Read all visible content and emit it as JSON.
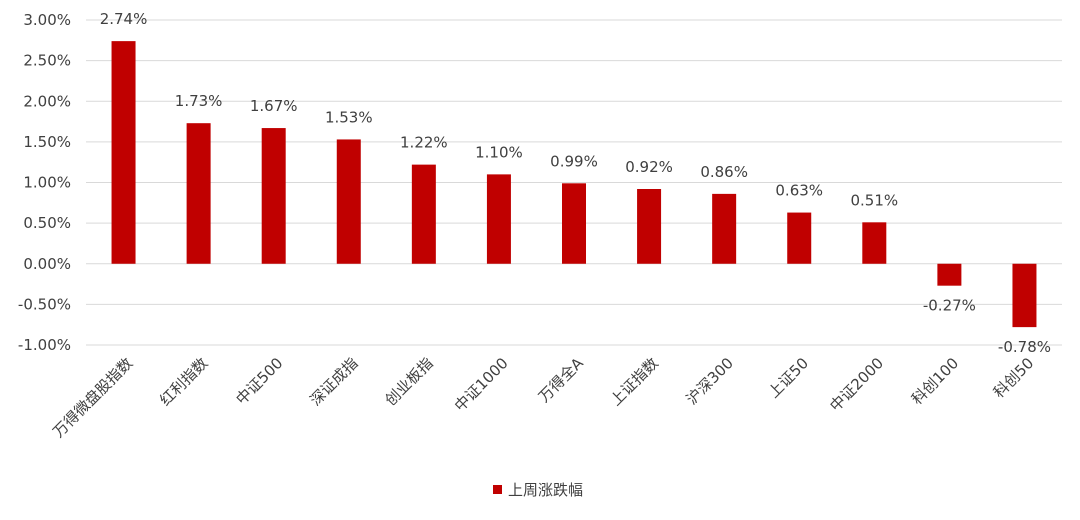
{
  "chart_data": {
    "type": "bar",
    "categories": [
      "万得微盘股指数",
      "红利指数",
      "中证500",
      "深证成指",
      "创业板指",
      "中证1000",
      "万得全A",
      "上证指数",
      "沪深300",
      "上证50",
      "中证2000",
      "科创100",
      "科创50"
    ],
    "series": [
      {
        "name": "上周涨跌幅",
        "values": [
          2.74,
          1.73,
          1.67,
          1.53,
          1.22,
          1.1,
          0.99,
          0.92,
          0.86,
          0.63,
          0.51,
          -0.27,
          -0.78
        ],
        "labels": [
          "2.74%",
          "1.73%",
          "1.67%",
          "1.53%",
          "1.22%",
          "1.10%",
          "0.99%",
          "0.92%",
          "0.86%",
          "0.63%",
          "0.51%",
          "-0.27%",
          "-0.78%"
        ]
      }
    ],
    "ylim": [
      -1.0,
      3.0
    ],
    "yticks": [
      3.0,
      2.5,
      2.0,
      1.5,
      1.0,
      0.5,
      0.0,
      -0.5,
      -1.0
    ],
    "ytick_labels": [
      "3.00%",
      "2.50%",
      "2.00%",
      "1.50%",
      "1.00%",
      "0.50%",
      "0.00%",
      "-0.50%",
      "-1.00%"
    ],
    "grid": true,
    "legend_position": "bottom",
    "colors": {
      "bar": "#C00000"
    }
  }
}
